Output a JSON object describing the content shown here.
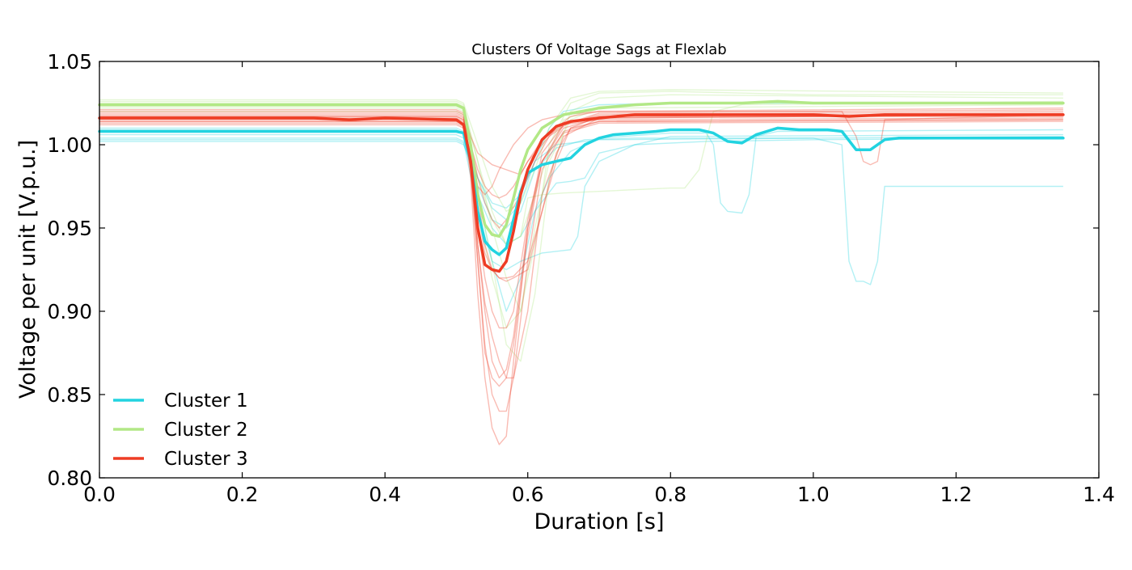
{
  "chart_data": {
    "type": "line",
    "title": "Clusters Of Voltage Sags at Flexlab",
    "xlabel": "Duration [s]",
    "ylabel": "Voltage per unit [V.p.u.]",
    "xlim": [
      0.0,
      1.4
    ],
    "ylim": [
      0.8,
      1.05
    ],
    "x_ticks": [
      "0.0",
      "0.2",
      "0.4",
      "0.6",
      "0.8",
      "1.0",
      "1.2",
      "1.4"
    ],
    "y_ticks": [
      "0.80",
      "0.85",
      "0.90",
      "0.95",
      "1.00",
      "1.05"
    ],
    "x_tick_values": [
      0.0,
      0.2,
      0.4,
      0.6,
      0.8,
      1.0,
      1.2,
      1.4
    ],
    "y_tick_values": [
      0.8,
      0.85,
      0.9,
      0.95,
      1.0,
      1.05
    ],
    "grid": false,
    "legend_position": "bottom-left",
    "series": [
      {
        "name": "Cluster 1",
        "color": "#22d3e0",
        "role": "centroid",
        "x": [
          0.0,
          0.5,
          0.51,
          0.52,
          0.53,
          0.54,
          0.55,
          0.56,
          0.57,
          0.58,
          0.59,
          0.6,
          0.62,
          0.64,
          0.66,
          0.68,
          0.7,
          0.72,
          0.75,
          0.78,
          0.8,
          0.84,
          0.86,
          0.88,
          0.9,
          0.92,
          0.95,
          0.98,
          1.02,
          1.04,
          1.06,
          1.08,
          1.1,
          1.12,
          1.35
        ],
        "values": [
          1.008,
          1.008,
          1.007,
          0.99,
          0.96,
          0.942,
          0.937,
          0.934,
          0.938,
          0.955,
          0.972,
          0.983,
          0.988,
          0.99,
          0.992,
          1.0,
          1.004,
          1.006,
          1.007,
          1.008,
          1.009,
          1.009,
          1.007,
          1.002,
          1.001,
          1.006,
          1.01,
          1.009,
          1.009,
          1.008,
          0.997,
          0.997,
          1.003,
          1.004,
          1.004
        ]
      },
      {
        "name": "Cluster 2",
        "color": "#b2e886",
        "role": "centroid",
        "x": [
          0.0,
          0.5,
          0.51,
          0.52,
          0.53,
          0.54,
          0.55,
          0.56,
          0.57,
          0.58,
          0.59,
          0.6,
          0.62,
          0.65,
          0.7,
          0.75,
          0.8,
          0.85,
          0.9,
          0.95,
          1.0,
          1.05,
          1.1,
          1.35
        ],
        "values": [
          1.024,
          1.024,
          1.022,
          1.0,
          0.97,
          0.952,
          0.946,
          0.945,
          0.952,
          0.968,
          0.985,
          0.997,
          1.01,
          1.018,
          1.022,
          1.024,
          1.025,
          1.025,
          1.025,
          1.026,
          1.025,
          1.025,
          1.025,
          1.025
        ]
      },
      {
        "name": "Cluster 3",
        "color": "#ee3c24",
        "role": "centroid",
        "x": [
          0.0,
          0.3,
          0.35,
          0.4,
          0.5,
          0.51,
          0.52,
          0.53,
          0.54,
          0.55,
          0.56,
          0.57,
          0.58,
          0.59,
          0.6,
          0.62,
          0.64,
          0.66,
          0.7,
          0.75,
          0.8,
          0.85,
          0.9,
          1.0,
          1.05,
          1.1,
          1.35
        ],
        "values": [
          1.016,
          1.016,
          1.015,
          1.016,
          1.015,
          1.012,
          0.99,
          0.95,
          0.928,
          0.925,
          0.924,
          0.93,
          0.948,
          0.97,
          0.985,
          1.003,
          1.011,
          1.014,
          1.016,
          1.018,
          1.018,
          1.018,
          1.018,
          1.018,
          1.017,
          1.018,
          1.018
        ]
      }
    ],
    "member_traces": [
      {
        "cluster": "Cluster 1",
        "color": "#22d3e0",
        "x": [
          0.0,
          0.5,
          0.51,
          0.53,
          0.55,
          0.57,
          0.59,
          0.62,
          0.66,
          0.67,
          0.68,
          0.7,
          0.75,
          0.85,
          1.0,
          1.35
        ],
        "values": [
          1.004,
          1.004,
          1.002,
          0.96,
          0.93,
          0.925,
          0.93,
          0.935,
          0.937,
          0.945,
          0.975,
          0.99,
          1.0,
          1.002,
          1.003,
          1.004
        ]
      },
      {
        "cluster": "Cluster 1",
        "color": "#22d3e0",
        "x": [
          0.0,
          0.5,
          0.51,
          0.53,
          0.55,
          0.57,
          0.59,
          0.61,
          0.64,
          0.66,
          0.68,
          0.7,
          0.8,
          1.35
        ],
        "values": [
          1.006,
          1.006,
          1.004,
          0.97,
          0.93,
          0.9,
          0.92,
          0.96,
          0.977,
          0.978,
          0.98,
          0.995,
          1.005,
          1.006
        ]
      },
      {
        "cluster": "Cluster 1",
        "color": "#22d3e0",
        "x": [
          0.0,
          0.5,
          0.51,
          0.53,
          0.55,
          0.57,
          0.59,
          0.61,
          0.63,
          0.66,
          0.7,
          0.8,
          0.85,
          0.86,
          0.87,
          0.88,
          0.9,
          0.91,
          0.92,
          0.95,
          1.35
        ],
        "values": [
          1.009,
          1.009,
          1.007,
          0.97,
          0.95,
          0.94,
          0.945,
          0.96,
          0.98,
          0.996,
          1.004,
          1.007,
          1.007,
          1.0,
          0.965,
          0.96,
          0.959,
          0.97,
          1.005,
          1.008,
          1.009
        ]
      },
      {
        "cluster": "Cluster 1",
        "color": "#22d3e0",
        "x": [
          0.0,
          0.5,
          0.51,
          0.53,
          0.55,
          0.57,
          0.59,
          0.61,
          0.64,
          0.68,
          0.75,
          1.0,
          1.04,
          1.05,
          1.06,
          1.07,
          1.08,
          1.09,
          1.1,
          1.35
        ],
        "values": [
          1.003,
          1.003,
          1.001,
          0.975,
          0.955,
          0.95,
          0.96,
          0.985,
          0.998,
          1.003,
          1.004,
          1.004,
          1.0,
          0.93,
          0.918,
          0.918,
          0.916,
          0.93,
          0.975,
          0.975
        ]
      },
      {
        "cluster": "Cluster 1",
        "color": "#22d3e0",
        "x": [
          0.0,
          0.5,
          0.51,
          0.53,
          0.55,
          0.57,
          0.59,
          0.61,
          0.63,
          0.65,
          0.7,
          0.8,
          1.35
        ],
        "values": [
          1.01,
          1.01,
          1.008,
          0.98,
          0.962,
          0.955,
          0.965,
          0.99,
          1.01,
          1.02,
          1.024,
          1.025,
          1.025
        ]
      },
      {
        "cluster": "Cluster 1",
        "color": "#22d3e0",
        "x": [
          0.0,
          0.5,
          0.51,
          0.53,
          0.55,
          0.57,
          0.59,
          0.61,
          0.64,
          0.7,
          1.35
        ],
        "values": [
          1.002,
          1.002,
          1.0,
          0.98,
          0.965,
          0.962,
          0.97,
          0.99,
          1.0,
          1.003,
          1.005
        ]
      },
      {
        "cluster": "Cluster 2",
        "color": "#b2e886",
        "x": [
          0.0,
          0.5,
          0.51,
          0.53,
          0.55,
          0.57,
          0.59,
          0.61,
          0.63,
          0.66,
          0.7,
          0.8,
          1.0,
          1.35
        ],
        "values": [
          1.026,
          1.026,
          1.024,
          0.99,
          0.95,
          0.92,
          0.9,
          0.94,
          1.0,
          1.025,
          1.031,
          1.032,
          1.03,
          1.03
        ]
      },
      {
        "cluster": "Cluster 2",
        "color": "#b2e886",
        "x": [
          0.0,
          0.5,
          0.51,
          0.53,
          0.55,
          0.57,
          0.59,
          0.61,
          0.63,
          0.66,
          0.7,
          0.8,
          1.35
        ],
        "values": [
          1.022,
          1.022,
          1.02,
          0.97,
          0.93,
          0.88,
          0.87,
          0.91,
          0.98,
          1.02,
          1.028,
          1.03,
          1.028
        ]
      },
      {
        "cluster": "Cluster 2",
        "color": "#b2e886",
        "x": [
          0.0,
          0.5,
          0.51,
          0.53,
          0.55,
          0.57,
          0.59,
          0.61,
          0.63,
          0.65,
          0.7,
          0.8,
          1.35
        ],
        "values": [
          1.025,
          1.025,
          1.023,
          0.98,
          0.955,
          0.94,
          0.945,
          0.97,
          0.995,
          1.015,
          1.023,
          1.025,
          1.025
        ]
      },
      {
        "cluster": "Cluster 2",
        "color": "#b2e886",
        "x": [
          0.0,
          0.5,
          0.51,
          0.53,
          0.55,
          0.57,
          0.59,
          0.6,
          0.62,
          0.65,
          0.7,
          0.8,
          0.82,
          0.84,
          0.86,
          0.9,
          1.35
        ],
        "values": [
          1.023,
          1.023,
          1.021,
          0.99,
          0.96,
          0.94,
          0.945,
          0.968,
          0.97,
          0.971,
          0.972,
          0.974,
          0.974,
          0.985,
          1.02,
          1.024,
          1.026
        ]
      },
      {
        "cluster": "Cluster 2",
        "color": "#b2e886",
        "x": [
          0.0,
          0.5,
          0.51,
          0.53,
          0.55,
          0.57,
          0.59,
          0.61,
          0.63,
          0.66,
          0.7,
          0.8,
          1.35
        ],
        "values": [
          1.027,
          1.027,
          1.025,
          1.0,
          0.975,
          0.96,
          0.965,
          0.985,
          1.01,
          1.028,
          1.032,
          1.033,
          1.031
        ]
      },
      {
        "cluster": "Cluster 2",
        "color": "#b2e886",
        "x": [
          0.0,
          0.5,
          0.51,
          0.53,
          0.55,
          0.57,
          0.59,
          0.61,
          0.63,
          0.66,
          0.7,
          1.35
        ],
        "values": [
          1.02,
          1.02,
          1.018,
          0.96,
          0.92,
          0.89,
          0.9,
          0.95,
          0.99,
          1.015,
          1.022,
          1.024
        ]
      },
      {
        "cluster": "Cluster 3",
        "color": "#ee3c24",
        "x": [
          0.0,
          0.5,
          0.51,
          0.52,
          0.53,
          0.54,
          0.55,
          0.56,
          0.57,
          0.58,
          0.6,
          0.62,
          0.65,
          0.7,
          1.35
        ],
        "values": [
          1.017,
          1.017,
          1.015,
          0.98,
          0.91,
          0.86,
          0.83,
          0.82,
          0.825,
          0.87,
          0.95,
          0.99,
          1.01,
          1.016,
          1.018
        ]
      },
      {
        "cluster": "Cluster 3",
        "color": "#ee3c24",
        "x": [
          0.0,
          0.5,
          0.51,
          0.52,
          0.53,
          0.54,
          0.55,
          0.56,
          0.57,
          0.58,
          0.6,
          0.62,
          0.65,
          0.7,
          1.35
        ],
        "values": [
          1.014,
          1.014,
          1.012,
          0.985,
          0.93,
          0.88,
          0.85,
          0.84,
          0.84,
          0.86,
          0.93,
          0.985,
          1.008,
          1.014,
          1.015
        ]
      },
      {
        "cluster": "Cluster 3",
        "color": "#ee3c24",
        "x": [
          0.0,
          0.5,
          0.51,
          0.52,
          0.53,
          0.54,
          0.55,
          0.56,
          0.57,
          0.58,
          0.6,
          0.62,
          0.65,
          0.7,
          1.35
        ],
        "values": [
          1.019,
          1.019,
          1.017,
          0.99,
          0.94,
          0.9,
          0.87,
          0.86,
          0.865,
          0.885,
          0.95,
          0.995,
          1.012,
          1.018,
          1.02
        ]
      },
      {
        "cluster": "Cluster 3",
        "color": "#ee3c24",
        "x": [
          0.0,
          0.5,
          0.51,
          0.52,
          0.53,
          0.54,
          0.55,
          0.56,
          0.57,
          0.58,
          0.6,
          0.62,
          0.65,
          0.7,
          1.35
        ],
        "values": [
          1.013,
          1.013,
          1.011,
          0.99,
          0.95,
          0.92,
          0.9,
          0.89,
          0.89,
          0.9,
          0.955,
          0.99,
          1.007,
          1.013,
          1.014
        ]
      },
      {
        "cluster": "Cluster 3",
        "color": "#ee3c24",
        "x": [
          0.0,
          0.5,
          0.51,
          0.52,
          0.53,
          0.54,
          0.55,
          0.56,
          0.57,
          0.58,
          0.6,
          0.62,
          0.64,
          0.66,
          0.7,
          1.35
        ],
        "values": [
          1.018,
          1.018,
          1.016,
          1.0,
          0.97,
          0.94,
          0.925,
          0.92,
          0.92,
          0.921,
          0.93,
          0.96,
          0.99,
          1.01,
          1.017,
          1.019
        ]
      },
      {
        "cluster": "Cluster 3",
        "color": "#ee3c24",
        "x": [
          0.0,
          0.5,
          0.51,
          0.52,
          0.53,
          0.54,
          0.55,
          0.56,
          0.57,
          0.58,
          0.6,
          0.62,
          0.65,
          0.7,
          1.35
        ],
        "values": [
          1.015,
          1.015,
          1.013,
          1.0,
          0.985,
          0.975,
          0.97,
          0.968,
          0.97,
          0.975,
          0.99,
          1.003,
          1.012,
          1.015,
          1.016
        ]
      },
      {
        "cluster": "Cluster 3",
        "color": "#ee3c24",
        "x": [
          0.0,
          0.5,
          0.51,
          0.52,
          0.53,
          0.54,
          0.55,
          0.56,
          0.58,
          0.6,
          0.62,
          0.65,
          0.7,
          1.0,
          1.04,
          1.06,
          1.07,
          1.08,
          1.09,
          1.1,
          1.35
        ],
        "values": [
          1.012,
          1.012,
          1.01,
          0.995,
          0.975,
          0.97,
          0.975,
          0.985,
          1.0,
          1.01,
          1.015,
          1.018,
          1.02,
          1.02,
          1.02,
          1.005,
          0.99,
          0.988,
          0.99,
          1.015,
          1.018
        ]
      },
      {
        "cluster": "Cluster 3",
        "color": "#ee3c24",
        "x": [
          0.0,
          0.5,
          0.51,
          0.52,
          0.53,
          0.54,
          0.55,
          0.56,
          0.57,
          0.58,
          0.6,
          0.62,
          0.65,
          0.7,
          1.35
        ],
        "values": [
          1.02,
          1.02,
          1.018,
          0.99,
          0.93,
          0.875,
          0.86,
          0.855,
          0.86,
          0.88,
          0.945,
          0.99,
          1.012,
          1.019,
          1.021
        ]
      },
      {
        "cluster": "Cluster 3",
        "color": "#ee3c24",
        "x": [
          0.0,
          0.5,
          0.51,
          0.52,
          0.53,
          0.54,
          0.55,
          0.56,
          0.57,
          0.59,
          0.61,
          0.63,
          0.66,
          0.7,
          1.35
        ],
        "values": [
          1.016,
          1.016,
          1.014,
          1.0,
          0.98,
          0.965,
          0.955,
          0.95,
          0.955,
          0.97,
          0.99,
          1.005,
          1.014,
          1.017,
          1.017
        ]
      },
      {
        "cluster": "Cluster 3",
        "color": "#ee3c24",
        "x": [
          0.0,
          0.5,
          0.51,
          0.52,
          0.53,
          0.54,
          0.55,
          0.56,
          0.57,
          0.58,
          0.6,
          0.62,
          0.64,
          0.66,
          0.7,
          1.35
        ],
        "values": [
          1.014,
          1.014,
          1.012,
          0.99,
          0.96,
          0.935,
          0.925,
          0.92,
          0.918,
          0.92,
          0.925,
          0.96,
          0.995,
          1.01,
          1.014,
          1.015
        ]
      },
      {
        "cluster": "Cluster 3",
        "color": "#ee3c24",
        "x": [
          0.0,
          0.5,
          0.51,
          0.52,
          0.53,
          0.55,
          0.57,
          0.59,
          0.6,
          0.62,
          0.64,
          0.66,
          0.7,
          1.35
        ],
        "values": [
          1.021,
          1.021,
          1.019,
          1.005,
          0.995,
          0.988,
          0.985,
          0.982,
          0.99,
          1.0,
          1.01,
          1.017,
          1.02,
          1.022
        ]
      },
      {
        "cluster": "Cluster 3",
        "color": "#ee3c24",
        "x": [
          0.0,
          0.5,
          0.51,
          0.52,
          0.53,
          0.54,
          0.55,
          0.56,
          0.57,
          0.58,
          0.6,
          0.62,
          0.65,
          0.7,
          1.35
        ],
        "values": [
          1.017,
          1.017,
          1.015,
          0.985,
          0.94,
          0.905,
          0.885,
          0.87,
          0.86,
          0.86,
          0.9,
          0.97,
          1.005,
          1.016,
          1.018
        ]
      }
    ]
  }
}
